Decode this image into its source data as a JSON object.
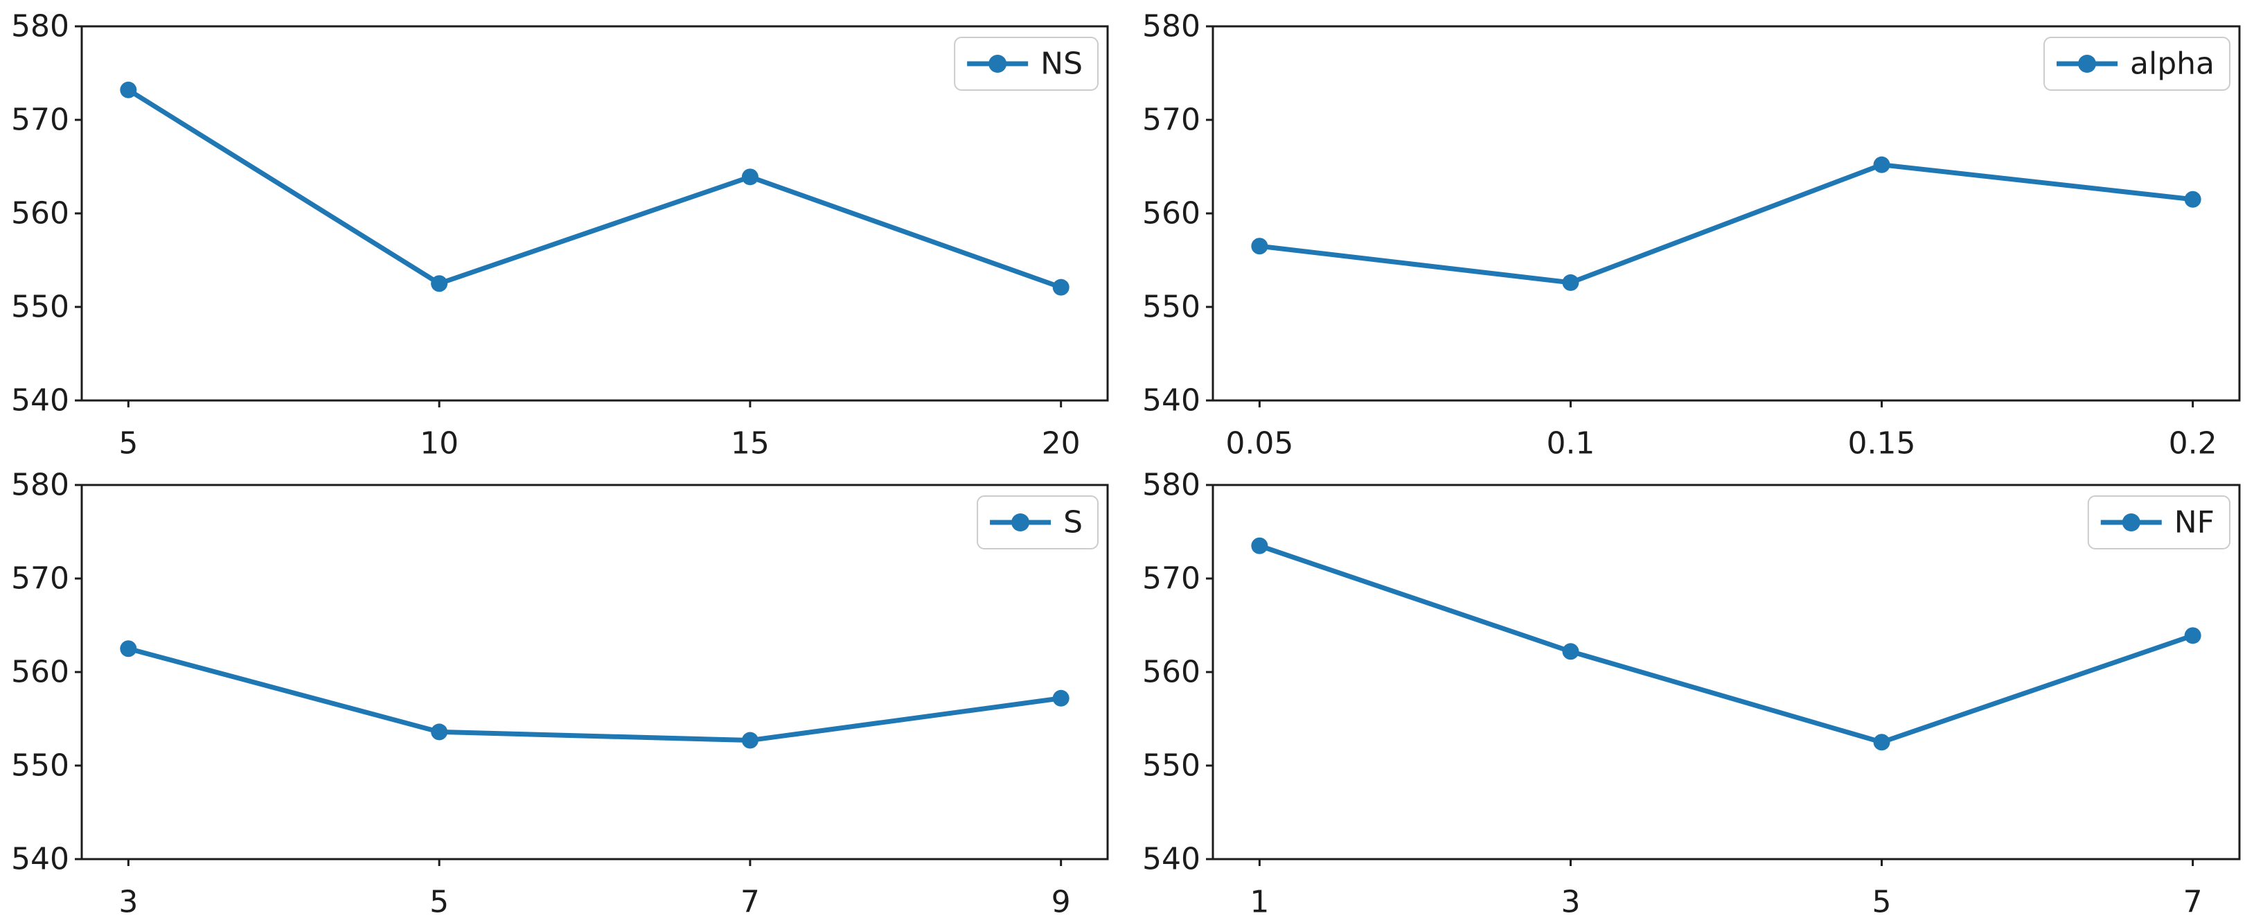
{
  "figure": {
    "background": "#ffffff",
    "text_color": "#1c1c1c",
    "spine_color": "#1c1c1c",
    "legend_border_color": "#cccccc",
    "legend_background": "#ffffff",
    "accent_color": "#1f77b4"
  },
  "chart_data": [
    {
      "type": "line",
      "panel": "top-left",
      "legend": "NS",
      "legend_position": "upper right",
      "x": [
        5,
        10,
        15,
        20
      ],
      "x_tick_labels": [
        "5",
        "10",
        "15",
        "20"
      ],
      "values": [
        573.2,
        552.5,
        563.9,
        552.1
      ],
      "ylim": [
        540,
        580
      ],
      "y_tick_labels": [
        "540",
        "550",
        "560",
        "570",
        "580"
      ],
      "grid": false,
      "line_color": "#1f77b4",
      "marker": "o"
    },
    {
      "type": "line",
      "panel": "top-right",
      "legend": "alpha",
      "legend_position": "upper right",
      "x": [
        0.05,
        0.1,
        0.15,
        0.2
      ],
      "x_tick_labels": [
        "0.05",
        "0.1",
        "0.15",
        "0.2"
      ],
      "values": [
        556.5,
        552.6,
        565.2,
        561.5
      ],
      "ylim": [
        540,
        580
      ],
      "y_tick_labels": [
        "540",
        "550",
        "560",
        "570",
        "580"
      ],
      "grid": false,
      "line_color": "#1f77b4",
      "marker": "o"
    },
    {
      "type": "line",
      "panel": "bottom-left",
      "legend": "S",
      "legend_position": "upper right",
      "x": [
        3,
        5,
        7,
        9
      ],
      "x_tick_labels": [
        "3",
        "5",
        "7",
        "9"
      ],
      "values": [
        562.5,
        553.6,
        552.7,
        557.2
      ],
      "ylim": [
        540,
        580
      ],
      "y_tick_labels": [
        "540",
        "550",
        "560",
        "570",
        "580"
      ],
      "grid": false,
      "line_color": "#1f77b4",
      "marker": "o"
    },
    {
      "type": "line",
      "panel": "bottom-right",
      "legend": "NF",
      "legend_position": "upper right",
      "x": [
        1,
        3,
        5,
        7
      ],
      "x_tick_labels": [
        "1",
        "3",
        "5",
        "7"
      ],
      "values": [
        573.5,
        562.2,
        552.5,
        563.9
      ],
      "ylim": [
        540,
        580
      ],
      "y_tick_labels": [
        "540",
        "550",
        "560",
        "570",
        "580"
      ],
      "grid": false,
      "line_color": "#1f77b4",
      "marker": "o"
    }
  ]
}
